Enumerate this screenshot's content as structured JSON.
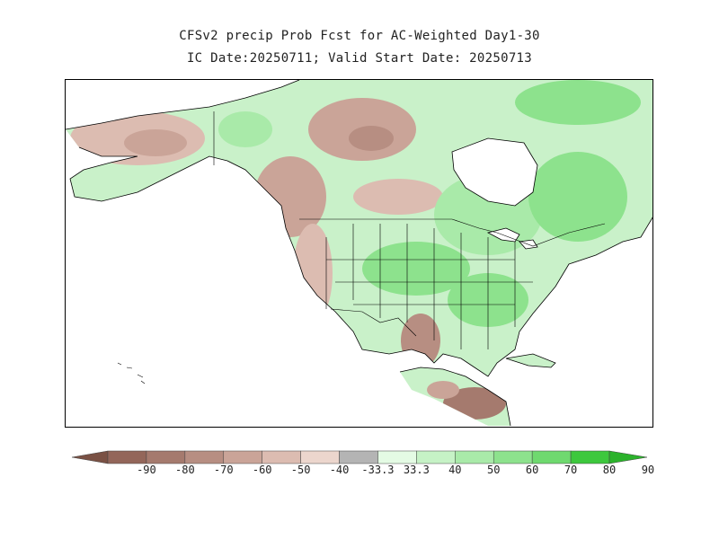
{
  "title": {
    "line1": "CFSv2 precip Prob Fcst for AC-Weighted Day1-30",
    "line2": "IC Date:20250711; Valid Start Date: 20250713"
  },
  "legend": {
    "ticks": [
      "-90",
      "-80",
      "-70",
      "-60",
      "-50",
      "-40",
      "-33.3",
      "33.3",
      "40",
      "50",
      "60",
      "70",
      "80",
      "90"
    ],
    "colors": [
      "#7a5144",
      "#93665a",
      "#a57a6e",
      "#b78e82",
      "#caa498",
      "#dcbcb1",
      "#ecd6cd",
      "#b4b4b4",
      "#e4fbe4",
      "#c6f2c6",
      "#a9eaa9",
      "#8de28d",
      "#6fd96f",
      "#3dc83d",
      "#2bb22b"
    ]
  },
  "map": {
    "region": "North America",
    "ocean_color": "#ffffff",
    "border_color": "#000000"
  }
}
